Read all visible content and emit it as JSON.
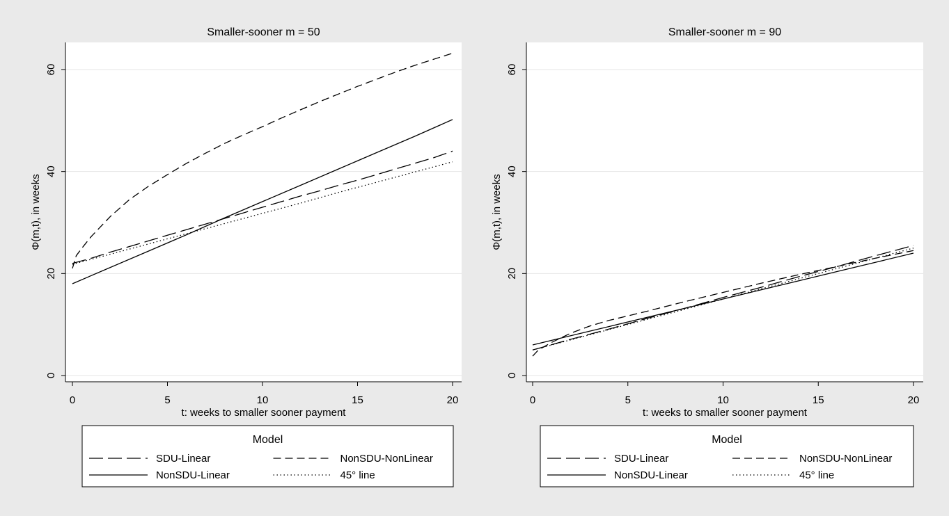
{
  "chart_data": [
    {
      "type": "line",
      "title": "Smaller-sooner m = 50",
      "xlabel": "t: weeks to smaller sooner payment",
      "ylabel": "Φ(m,t), in weeks",
      "xlim": [
        0,
        20
      ],
      "ylim": [
        0,
        65
      ],
      "xticks": [
        "0",
        "5",
        "10",
        "15",
        "20"
      ],
      "yticks": [
        "0",
        "20",
        "40",
        "60"
      ],
      "grid": "horizontal",
      "legend": {
        "title": "Model",
        "position": "bottom",
        "entries": [
          "SDU-Linear",
          "NonSDU-NonLinear",
          "NonSDU-Linear",
          "45° line"
        ]
      },
      "series": [
        {
          "name": "SDU-Linear",
          "dash": "long",
          "x": [
            0,
            1,
            2,
            3,
            4,
            5,
            6,
            7,
            8,
            9,
            10,
            11,
            12,
            13,
            14,
            15,
            16,
            17,
            18,
            19,
            20
          ],
          "y": [
            22.0,
            23.0,
            24.2,
            25.3,
            26.4,
            27.5,
            28.6,
            29.7,
            30.8,
            31.9,
            33.0,
            34.1,
            35.2,
            36.2,
            37.3,
            38.3,
            39.4,
            40.5,
            41.6,
            42.7,
            44.0
          ]
        },
        {
          "name": "NonSDU-NonLinear",
          "dash": "medium",
          "x": [
            0,
            0.2,
            0.5,
            1,
            2,
            3,
            4,
            5,
            6,
            7,
            8,
            9,
            10,
            11,
            12,
            13,
            14,
            15,
            16,
            17,
            18,
            19,
            20
          ],
          "y": [
            21.0,
            23.5,
            25.0,
            27.3,
            31.2,
            34.5,
            37.1,
            39.4,
            41.6,
            43.6,
            45.5,
            47.2,
            48.8,
            50.5,
            52.1,
            53.7,
            55.2,
            56.7,
            58.1,
            59.5,
            60.8,
            62.0,
            63.2
          ]
        },
        {
          "name": "NonSDU-Linear",
          "dash": "solid",
          "x": [
            0,
            2,
            4,
            6,
            8,
            10,
            12,
            14,
            16,
            18,
            20
          ],
          "y": [
            18.0,
            21.2,
            24.4,
            27.6,
            30.9,
            34.1,
            37.3,
            40.5,
            43.7,
            46.9,
            50.2
          ]
        },
        {
          "name": "45° line",
          "dash": "dotted",
          "x": [
            0,
            2,
            4,
            6,
            8,
            10,
            12,
            14,
            16,
            18,
            20
          ],
          "y": [
            21.8,
            23.8,
            25.8,
            27.8,
            29.8,
            31.8,
            33.8,
            35.9,
            37.9,
            39.9,
            41.9
          ]
        }
      ]
    },
    {
      "type": "line",
      "title": "Smaller-sooner m = 90",
      "xlabel": "t: weeks to smaller sooner payment",
      "ylabel": "Φ(m,t), in weeks",
      "xlim": [
        0,
        20
      ],
      "ylim": [
        0,
        65
      ],
      "xticks": [
        "0",
        "5",
        "10",
        "15",
        "20"
      ],
      "yticks": [
        "0",
        "20",
        "40",
        "60"
      ],
      "grid": "horizontal",
      "legend": {
        "title": "Model",
        "position": "bottom",
        "entries": [
          "SDU-Linear",
          "NonSDU-NonLinear",
          "NonSDU-Linear",
          "45° line"
        ]
      },
      "series": [
        {
          "name": "SDU-Linear",
          "dash": "long",
          "x": [
            0,
            2,
            4,
            6,
            8,
            10,
            12,
            14,
            16,
            18,
            20
          ],
          "y": [
            5.0,
            7.1,
            9.1,
            11.2,
            13.2,
            15.3,
            17.3,
            19.4,
            21.4,
            23.5,
            25.5
          ]
        },
        {
          "name": "NonSDU-NonLinear",
          "dash": "medium",
          "x": [
            0,
            0.3,
            1,
            2,
            3,
            4,
            5,
            6,
            8,
            10,
            12,
            14,
            16,
            18,
            20
          ],
          "y": [
            3.8,
            5.0,
            6.5,
            8.3,
            9.7,
            10.8,
            11.7,
            12.6,
            14.5,
            16.3,
            18.1,
            19.8,
            21.4,
            23.0,
            24.5
          ]
        },
        {
          "name": "NonSDU-Linear",
          "dash": "solid",
          "x": [
            0,
            2,
            4,
            6,
            8,
            10,
            12,
            14,
            16,
            18,
            20
          ],
          "y": [
            6.0,
            7.8,
            9.6,
            11.4,
            13.2,
            15.0,
            16.8,
            18.6,
            20.4,
            22.2,
            24.0
          ]
        },
        {
          "name": "45° line",
          "dash": "dotted",
          "x": [
            0,
            2,
            4,
            6,
            8,
            10,
            12,
            14,
            16,
            18,
            20
          ],
          "y": [
            5.0,
            7.0,
            9.0,
            11.0,
            13.0,
            15.0,
            17.0,
            19.0,
            21.0,
            23.0,
            25.0
          ]
        }
      ]
    }
  ]
}
